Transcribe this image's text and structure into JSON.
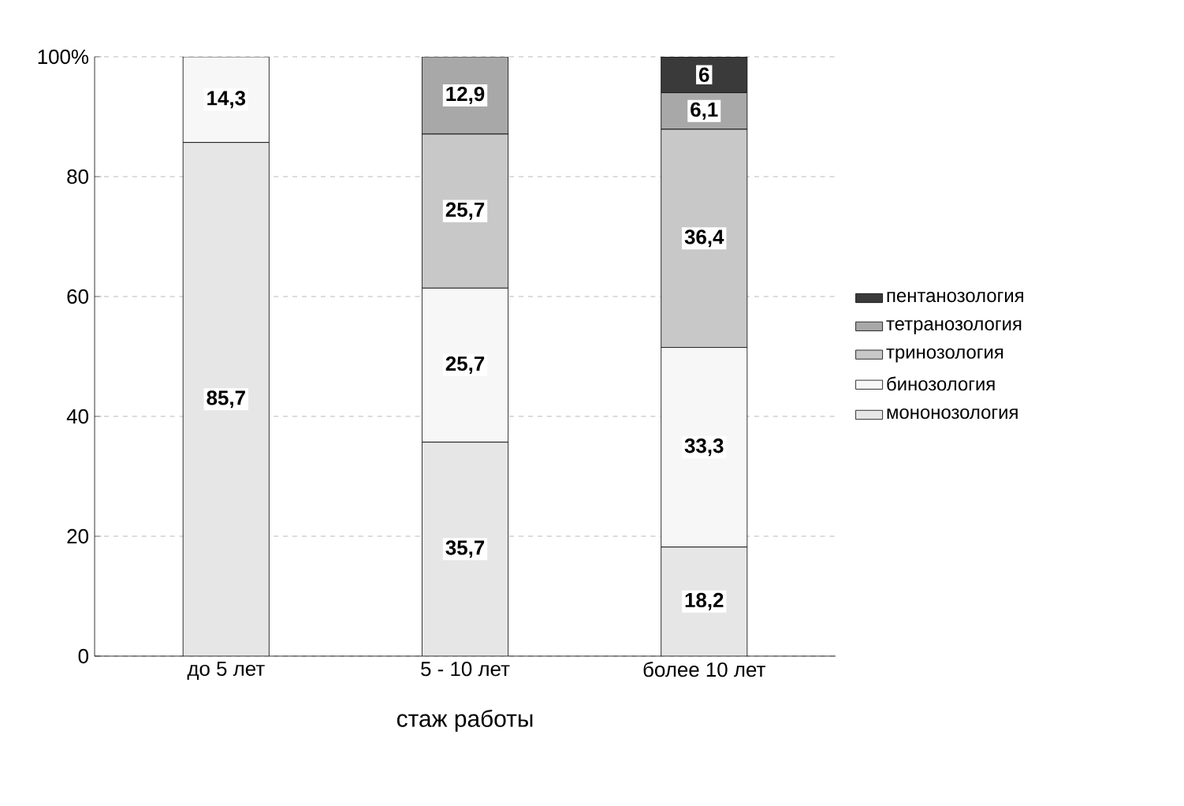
{
  "chart_data": {
    "type": "bar",
    "stacked": true,
    "xlabel": "стаж работы",
    "categories": [
      "до 5 лет",
      "5 - 10 лет",
      "более 10 лет"
    ],
    "ylim": [
      0,
      100
    ],
    "yticks": [
      0,
      20,
      40,
      60,
      {
        "value": 100,
        "label": "100%"
      },
      80
    ],
    "grid": "y",
    "legend": "right",
    "series": [
      {
        "name": "мононозология",
        "color": "#e6e6e6",
        "values": [
          85.7,
          35.7,
          18.2
        ],
        "value_labels": [
          "85,7",
          "35,7",
          "18,2"
        ]
      },
      {
        "name": "бинозология",
        "color": "#f7f7f7",
        "values": [
          14.3,
          25.7,
          33.3
        ],
        "value_labels": [
          "14,3",
          "25,7",
          "33,3"
        ]
      },
      {
        "name": "тринозология",
        "color": "#c8c8c8",
        "values": [
          null,
          25.7,
          36.4
        ],
        "value_labels": [
          null,
          "25,7",
          "36,4"
        ]
      },
      {
        "name": "тетранозология",
        "color": "#a8a8a8",
        "values": [
          null,
          12.9,
          6.1
        ],
        "value_labels": [
          null,
          "12,9",
          "6,1"
        ]
      },
      {
        "name": "пентанозология",
        "color": "#3a3a3a",
        "values": [
          null,
          null,
          6
        ],
        "value_labels": [
          null,
          null,
          "6"
        ]
      }
    ]
  }
}
